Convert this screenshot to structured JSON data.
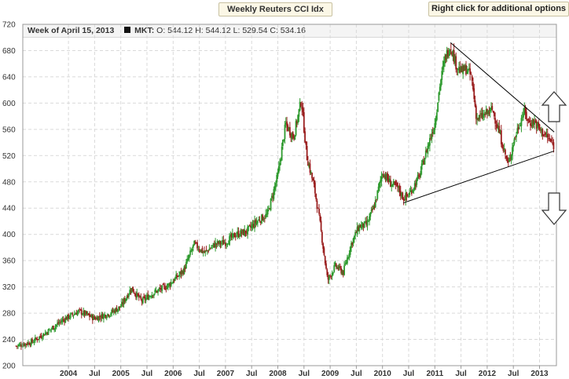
{
  "header": {
    "title_button": "Weekly Reuters CCI Idx",
    "options_button": "Right click for additional options"
  },
  "info": {
    "week_label": "Week of April 15, 2013",
    "series_label": "MKT:",
    "open": "O: 544.12",
    "high": "H: 544.12",
    "low": "L: 529.54",
    "close": "C: 534.16"
  },
  "icons": {
    "up": "arrow-up-icon",
    "down": "arrow-down-icon"
  },
  "colors": {
    "up": "#2e9a2e",
    "down": "#9a1f1f",
    "grid": "#d9d9d9",
    "axis": "#999999",
    "trend": "#000000"
  },
  "chart_data": {
    "type": "candlestick",
    "title": "Weekly Reuters CCI Idx",
    "ylim": [
      200,
      720
    ],
    "yticks": [
      200,
      240,
      280,
      320,
      360,
      400,
      440,
      480,
      520,
      560,
      600,
      640,
      680,
      720
    ],
    "xlim": [
      2003.0,
      2013.3
    ],
    "xticks": [
      {
        "x": 2004.0,
        "label": "2004"
      },
      {
        "x": 2004.5,
        "label": "Jul"
      },
      {
        "x": 2005.0,
        "label": "2005"
      },
      {
        "x": 2005.5,
        "label": "Jul"
      },
      {
        "x": 2006.0,
        "label": "2006"
      },
      {
        "x": 2006.5,
        "label": "Jul"
      },
      {
        "x": 2007.0,
        "label": "2007"
      },
      {
        "x": 2007.5,
        "label": "Jul"
      },
      {
        "x": 2008.0,
        "label": "2008"
      },
      {
        "x": 2008.5,
        "label": "Jul"
      },
      {
        "x": 2009.0,
        "label": "2009"
      },
      {
        "x": 2009.5,
        "label": "Jul"
      },
      {
        "x": 2010.0,
        "label": "2010"
      },
      {
        "x": 2010.5,
        "label": "Jul"
      },
      {
        "x": 2011.0,
        "label": "2011"
      },
      {
        "x": 2011.5,
        "label": "Jul"
      },
      {
        "x": 2012.0,
        "label": "2012"
      },
      {
        "x": 2012.5,
        "label": "Jul"
      },
      {
        "x": 2013.0,
        "label": "2013"
      }
    ],
    "price_path": [
      [
        2003.0,
        230
      ],
      [
        2003.3,
        236
      ],
      [
        2003.6,
        252
      ],
      [
        2003.9,
        270
      ],
      [
        2004.2,
        283
      ],
      [
        2004.5,
        272
      ],
      [
        2004.8,
        280
      ],
      [
        2005.0,
        290
      ],
      [
        2005.2,
        318
      ],
      [
        2005.4,
        298
      ],
      [
        2005.6,
        310
      ],
      [
        2005.9,
        322
      ],
      [
        2006.2,
        345
      ],
      [
        2006.4,
        385
      ],
      [
        2006.6,
        372
      ],
      [
        2006.8,
        385
      ],
      [
        2007.0,
        388
      ],
      [
        2007.2,
        400
      ],
      [
        2007.4,
        404
      ],
      [
        2007.6,
        420
      ],
      [
        2007.8,
        430
      ],
      [
        2008.0,
        490
      ],
      [
        2008.15,
        568
      ],
      [
        2008.3,
        548
      ],
      [
        2008.45,
        605
      ],
      [
        2008.55,
        520
      ],
      [
        2008.7,
        470
      ],
      [
        2008.8,
        420
      ],
      [
        2008.95,
        330
      ],
      [
        2009.1,
        352
      ],
      [
        2009.25,
        342
      ],
      [
        2009.4,
        385
      ],
      [
        2009.55,
        412
      ],
      [
        2009.7,
        415
      ],
      [
        2009.85,
        445
      ],
      [
        2010.0,
        495
      ],
      [
        2010.15,
        478
      ],
      [
        2010.3,
        470
      ],
      [
        2010.4,
        455
      ],
      [
        2010.5,
        460
      ],
      [
        2010.7,
        488
      ],
      [
        2010.85,
        530
      ],
      [
        2011.0,
        570
      ],
      [
        2011.1,
        630
      ],
      [
        2011.2,
        670
      ],
      [
        2011.3,
        688
      ],
      [
        2011.4,
        660
      ],
      [
        2011.5,
        648
      ],
      [
        2011.6,
        652
      ],
      [
        2011.7,
        640
      ],
      [
        2011.8,
        575
      ],
      [
        2011.95,
        582
      ],
      [
        2012.1,
        590
      ],
      [
        2012.25,
        550
      ],
      [
        2012.4,
        505
      ],
      [
        2012.5,
        540
      ],
      [
        2012.6,
        565
      ],
      [
        2012.7,
        588
      ],
      [
        2012.8,
        570
      ],
      [
        2012.9,
        572
      ],
      [
        2013.0,
        560
      ],
      [
        2013.15,
        548
      ],
      [
        2013.28,
        534
      ]
    ],
    "trendlines": [
      {
        "from": [
          2011.3,
          692
        ],
        "to": [
          2013.28,
          556
        ]
      },
      {
        "from": [
          2010.4,
          448
        ],
        "to": [
          2013.28,
          527
        ]
      }
    ]
  }
}
